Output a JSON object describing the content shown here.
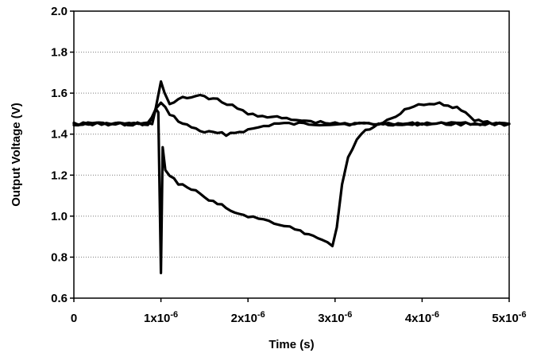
{
  "chart_data": {
    "type": "line",
    "title": "",
    "xlabel": "Time (s)",
    "ylabel": "Output Voltage (V)",
    "xlim": [
      0,
      5e-06
    ],
    "ylim": [
      0.6,
      2.0
    ],
    "grid": {
      "horizontal": true,
      "vertical": false,
      "style": "dotted"
    },
    "legend": "none",
    "x_ticks": [
      {
        "value": 0,
        "label": "0"
      },
      {
        "value": 1e-06,
        "label": "1x10",
        "exp": "-6"
      },
      {
        "value": 2e-06,
        "label": "2x10",
        "exp": "-6"
      },
      {
        "value": 3e-06,
        "label": "3x10",
        "exp": "-6"
      },
      {
        "value": 4e-06,
        "label": "4x10",
        "exp": "-6"
      },
      {
        "value": 5e-06,
        "label": "5x10",
        "exp": "-6"
      }
    ],
    "y_ticks": [
      {
        "value": 0.6,
        "label": "0.6"
      },
      {
        "value": 0.8,
        "label": "0.8"
      },
      {
        "value": 1.0,
        "label": "1.0"
      },
      {
        "value": 1.2,
        "label": "1.2"
      },
      {
        "value": 1.4,
        "label": "1.4"
      },
      {
        "value": 1.6,
        "label": "1.6"
      },
      {
        "value": 1.8,
        "label": "1.8"
      },
      {
        "value": 2.0,
        "label": "2.0"
      }
    ],
    "series": [
      {
        "color": "#000000",
        "points": [
          [
            0,
            1.45
          ],
          [
            8.5e-07,
            1.45
          ],
          [
            9.4e-07,
            1.52
          ],
          [
            1e-06,
            1.55
          ],
          [
            1.1e-06,
            1.5
          ],
          [
            1.25e-06,
            1.45
          ],
          [
            1.5e-06,
            1.41
          ],
          [
            1.75e-06,
            1.4
          ],
          [
            2e-06,
            1.42
          ],
          [
            2.3e-06,
            1.45
          ],
          [
            2.7e-06,
            1.45
          ],
          [
            3e-06,
            1.45
          ],
          [
            3.5e-06,
            1.45
          ],
          [
            4e-06,
            1.45
          ],
          [
            4.5e-06,
            1.45
          ],
          [
            5e-06,
            1.45
          ]
        ]
      },
      {
        "color": "#000000",
        "points": [
          [
            0,
            1.45
          ],
          [
            8.5e-07,
            1.45
          ],
          [
            9.3e-07,
            1.5
          ],
          [
            1e-06,
            1.66
          ],
          [
            1.04e-06,
            1.6
          ],
          [
            1.1e-06,
            1.54
          ],
          [
            1.2e-06,
            1.57
          ],
          [
            1.45e-06,
            1.59
          ],
          [
            1.7e-06,
            1.56
          ],
          [
            2e-06,
            1.5
          ],
          [
            2.5e-06,
            1.47
          ],
          [
            3e-06,
            1.45
          ],
          [
            3.5e-06,
            1.45
          ],
          [
            3.7e-06,
            1.49
          ],
          [
            3.9e-06,
            1.54
          ],
          [
            4.2e-06,
            1.55
          ],
          [
            4.4e-06,
            1.53
          ],
          [
            4.6e-06,
            1.47
          ],
          [
            4.8e-06,
            1.45
          ],
          [
            5e-06,
            1.45
          ]
        ]
      },
      {
        "color": "#000000",
        "points": [
          [
            0,
            1.45
          ],
          [
            9e-07,
            1.45
          ],
          [
            9.4e-07,
            1.53
          ],
          [
            9.7e-07,
            1.5
          ],
          [
            1e-06,
            0.72
          ],
          [
            1.02e-06,
            1.33
          ],
          [
            1.05e-06,
            1.22
          ],
          [
            1.2e-06,
            1.16
          ],
          [
            1.4e-06,
            1.12
          ],
          [
            1.6e-06,
            1.07
          ],
          [
            1.8e-06,
            1.03
          ],
          [
            2e-06,
            1.0
          ],
          [
            2.3e-06,
            0.97
          ],
          [
            2.6e-06,
            0.93
          ],
          [
            2.8e-06,
            0.89
          ],
          [
            2.97e-06,
            0.86
          ],
          [
            3.02e-06,
            0.95
          ],
          [
            3.08e-06,
            1.15
          ],
          [
            3.15e-06,
            1.28
          ],
          [
            3.25e-06,
            1.37
          ],
          [
            3.35e-06,
            1.42
          ],
          [
            3.5e-06,
            1.45
          ],
          [
            4e-06,
            1.45
          ],
          [
            4.5e-06,
            1.45
          ],
          [
            5e-06,
            1.45
          ]
        ]
      }
    ]
  }
}
